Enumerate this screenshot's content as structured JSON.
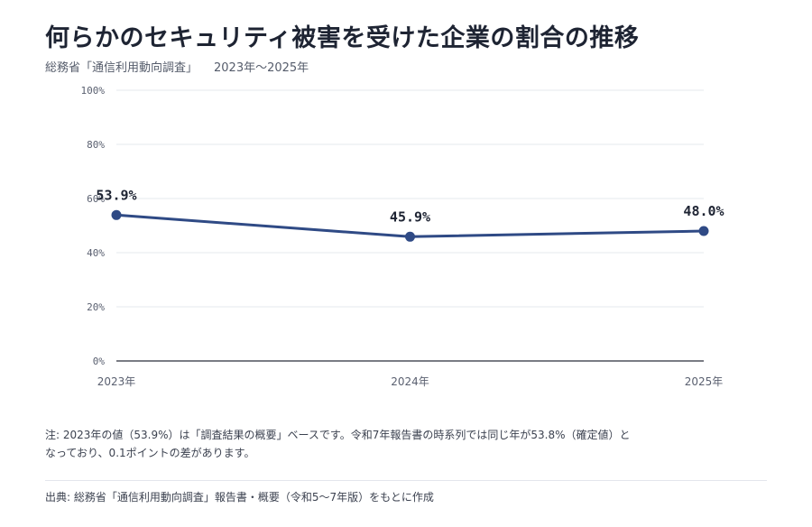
{
  "header": {
    "title": "何らかのセキュリティ被害を受けた企業の割合の推移",
    "source_label": "総務省「通信利用動向調査」",
    "period": "2023年～2025年"
  },
  "chart_data": {
    "type": "line",
    "categories": [
      "2023年",
      "2024年",
      "2025年"
    ],
    "series": [
      {
        "values": [
          53.9,
          45.9,
          48.0
        ],
        "labels": [
          "53.9%",
          "45.9%",
          "48.0%"
        ],
        "color": "#2f4a85"
      }
    ],
    "ylim": [
      0,
      100
    ],
    "yticks": [
      0,
      20,
      40,
      60,
      80,
      100
    ],
    "ytick_labels": [
      "0%",
      "20%",
      "40%",
      "60%",
      "80%",
      "100%"
    ],
    "grid": true,
    "xlabel": "",
    "ylabel": ""
  },
  "footer": {
    "note": "注: 2023年の値（53.9%）は「調査結果の概要」ベースです。令和7年報告書の時系列では同じ年が53.8%（確定値）となっており、0.1ポイントの差があります。",
    "source": "出典: 総務省「通信利用動向調査」報告書・概要（令和5～7年版）をもとに作成"
  }
}
